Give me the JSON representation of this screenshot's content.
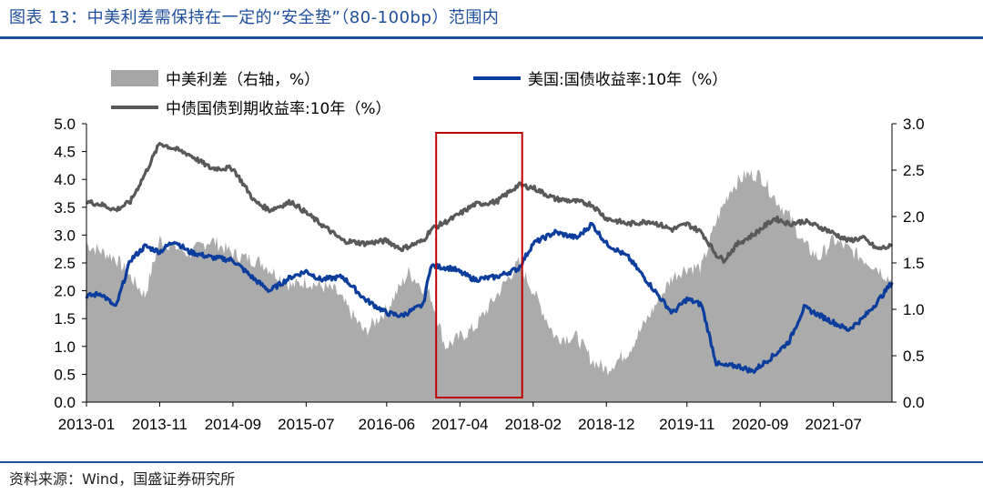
{
  "title": "图表 13：中美利差需保持在一定的“安全垫”（80-100bp）范围内",
  "source": "资料来源：Wind，国盛证券研究所",
  "colors": {
    "accent": "#1f4e9c",
    "spread": "#a6a6a6",
    "us": "#0a3d9c",
    "cn": "#595959",
    "highlight": "#c00000"
  },
  "chart_data": {
    "type": "line",
    "x_tick_labels": [
      "2013-01",
      "2013-11",
      "2014-09",
      "2015-07",
      "2016-06",
      "2017-04",
      "2018-02",
      "2018-12",
      "2019-11",
      "2020-09",
      "2021-07"
    ],
    "y_left": {
      "range": [
        0,
        5
      ],
      "ticks": [
        "0.0",
        "0.5",
        "1.0",
        "1.5",
        "2.0",
        "2.5",
        "3.0",
        "3.5",
        "4.0",
        "4.5",
        "5.0"
      ]
    },
    "y_right": {
      "range": [
        0,
        3
      ],
      "ticks": [
        "0.0",
        "0.5",
        "1.0",
        "1.5",
        "2.0",
        "2.5",
        "3.0"
      ]
    },
    "legend": [
      "中美利差（右轴，%）",
      "美国:国债收益率:10年（%）",
      "中债国债到期收益率:10年（%）"
    ],
    "highlight_period": [
      "2017-01",
      "2017-12"
    ],
    "series": [
      {
        "name": "中美利差（右轴，%）",
        "kind": "area",
        "axis": "right",
        "x": [
          "2013-01",
          "2013-05",
          "2013-09",
          "2013-11",
          "2014-03",
          "2014-06",
          "2014-09",
          "2015-01",
          "2015-05",
          "2015-07",
          "2015-11",
          "2016-03",
          "2016-06",
          "2016-09",
          "2016-12",
          "2017-02",
          "2017-06",
          "2017-09",
          "2017-12",
          "2018-02",
          "2018-05",
          "2018-08",
          "2018-10",
          "2018-12",
          "2019-03",
          "2019-06",
          "2019-09",
          "2019-11",
          "2020-01",
          "2020-03",
          "2020-05",
          "2020-07",
          "2020-09",
          "2020-11",
          "2021-01",
          "2021-03",
          "2021-05",
          "2021-07",
          "2021-10",
          "2022-01",
          "2022-03"
        ],
        "values": [
          1.7,
          1.55,
          1.15,
          1.75,
          1.6,
          1.75,
          1.6,
          1.5,
          1.25,
          1.3,
          1.2,
          0.75,
          1.0,
          1.4,
          1.15,
          0.6,
          0.8,
          1.15,
          1.5,
          1.2,
          0.7,
          0.7,
          0.45,
          0.35,
          0.55,
          0.95,
          1.35,
          1.45,
          1.45,
          1.95,
          2.3,
          2.45,
          2.45,
          2.2,
          2.0,
          1.7,
          1.55,
          1.75,
          1.6,
          1.45,
          1.3
        ]
      },
      {
        "name": "美国:国债收益率:10年（%）",
        "kind": "line",
        "axis": "left",
        "x": [
          "2013-01",
          "2013-03",
          "2013-05",
          "2013-07",
          "2013-09",
          "2013-11",
          "2014-01",
          "2014-03",
          "2014-06",
          "2014-09",
          "2014-12",
          "2015-02",
          "2015-05",
          "2015-07",
          "2015-09",
          "2015-12",
          "2016-03",
          "2016-06",
          "2016-08",
          "2016-11",
          "2016-12",
          "2017-03",
          "2017-06",
          "2017-09",
          "2017-12",
          "2018-02",
          "2018-05",
          "2018-08",
          "2018-10",
          "2018-12",
          "2019-03",
          "2019-06",
          "2019-09",
          "2019-11",
          "2020-01",
          "2020-03",
          "2020-04",
          "2020-06",
          "2020-08",
          "2020-11",
          "2021-01",
          "2021-03",
          "2021-06",
          "2021-09",
          "2021-11",
          "2022-01",
          "2022-03"
        ],
        "values": [
          1.9,
          1.95,
          1.7,
          2.55,
          2.8,
          2.7,
          2.9,
          2.7,
          2.6,
          2.55,
          2.2,
          2.0,
          2.25,
          2.35,
          2.2,
          2.25,
          1.85,
          1.6,
          1.55,
          1.75,
          2.45,
          2.4,
          2.2,
          2.25,
          2.4,
          2.85,
          3.05,
          2.95,
          3.2,
          2.85,
          2.6,
          2.1,
          1.6,
          1.85,
          1.75,
          0.7,
          0.65,
          0.65,
          0.55,
          0.85,
          1.1,
          1.7,
          1.5,
          1.3,
          1.5,
          1.8,
          2.15
        ]
      },
      {
        "name": "中债国债到期收益率:10年（%）",
        "kind": "line",
        "axis": "left",
        "x": [
          "2013-01",
          "2013-03",
          "2013-05",
          "2013-07",
          "2013-09",
          "2013-11",
          "2014-01",
          "2014-03",
          "2014-06",
          "2014-09",
          "2014-12",
          "2015-02",
          "2015-05",
          "2015-07",
          "2015-09",
          "2015-12",
          "2016-03",
          "2016-06",
          "2016-08",
          "2016-11",
          "2016-12",
          "2017-03",
          "2017-06",
          "2017-09",
          "2017-12",
          "2018-02",
          "2018-05",
          "2018-08",
          "2018-10",
          "2018-12",
          "2019-03",
          "2019-06",
          "2019-09",
          "2019-11",
          "2020-01",
          "2020-03",
          "2020-04",
          "2020-06",
          "2020-08",
          "2020-11",
          "2021-01",
          "2021-03",
          "2021-06",
          "2021-09",
          "2021-11",
          "2022-01",
          "2022-03"
        ],
        "values": [
          3.6,
          3.55,
          3.45,
          3.6,
          4.1,
          4.65,
          4.55,
          4.45,
          4.2,
          4.2,
          3.6,
          3.45,
          3.6,
          3.4,
          3.2,
          2.9,
          2.85,
          2.9,
          2.75,
          2.9,
          3.1,
          3.3,
          3.55,
          3.6,
          3.9,
          3.85,
          3.65,
          3.6,
          3.55,
          3.3,
          3.2,
          3.25,
          3.1,
          3.2,
          3.05,
          2.65,
          2.55,
          2.85,
          3.0,
          3.3,
          3.2,
          3.25,
          3.1,
          2.9,
          2.95,
          2.75,
          2.8
        ]
      }
    ]
  }
}
